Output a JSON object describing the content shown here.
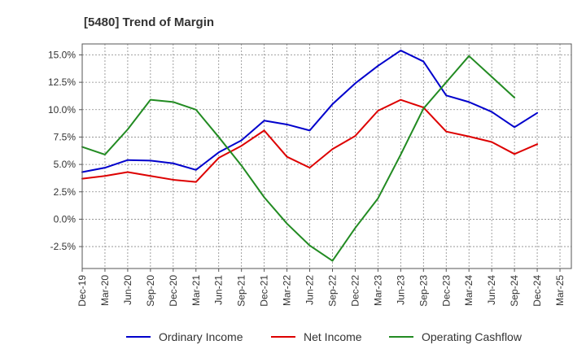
{
  "chart_data": {
    "type": "line",
    "title": "[5480]  Trend of Margin",
    "xlabel": "",
    "ylabel": "",
    "categories": [
      "Dec-19",
      "Mar-20",
      "Jun-20",
      "Sep-20",
      "Dec-20",
      "Mar-21",
      "Jun-21",
      "Sep-21",
      "Dec-21",
      "Mar-22",
      "Jun-22",
      "Sep-22",
      "Dec-22",
      "Mar-23",
      "Jun-23",
      "Sep-23",
      "Dec-23",
      "Mar-24",
      "Jun-24",
      "Sep-24",
      "Dec-24",
      "Mar-25"
    ],
    "ylim": [
      -4.5,
      16.0
    ],
    "yticks": [
      -2.5,
      0.0,
      2.5,
      5.0,
      7.5,
      10.0,
      12.5,
      15.0
    ],
    "ytick_labels": [
      "-2.5%",
      "0.0%",
      "2.5%",
      "5.0%",
      "7.5%",
      "10.0%",
      "12.5%",
      "15.0%"
    ],
    "grid": true,
    "legend_position": "bottom",
    "series": [
      {
        "name": "Ordinary Income",
        "color": "#0000cc",
        "values": [
          4.3,
          4.7,
          5.4,
          5.35,
          5.1,
          4.5,
          6.1,
          7.2,
          9.0,
          8.65,
          8.1,
          10.5,
          12.4,
          14.0,
          15.4,
          14.4,
          11.3,
          10.7,
          9.8,
          8.4,
          9.7,
          null
        ]
      },
      {
        "name": "Net Income",
        "color": "#dd0000",
        "values": [
          3.7,
          3.95,
          4.3,
          3.95,
          3.6,
          3.4,
          5.6,
          6.7,
          8.1,
          5.7,
          4.7,
          6.4,
          7.6,
          9.9,
          10.9,
          10.2,
          8.0,
          7.55,
          7.05,
          5.95,
          6.85,
          null
        ]
      },
      {
        "name": "Operating Cashflow",
        "color": "#228b22",
        "values": [
          6.6,
          5.9,
          8.2,
          10.9,
          10.7,
          10.0,
          7.5,
          4.9,
          2.0,
          -0.4,
          -2.4,
          -3.8,
          -0.8,
          1.9,
          5.9,
          10.1,
          12.5,
          14.9,
          13.0,
          11.1,
          null,
          null
        ]
      }
    ]
  }
}
